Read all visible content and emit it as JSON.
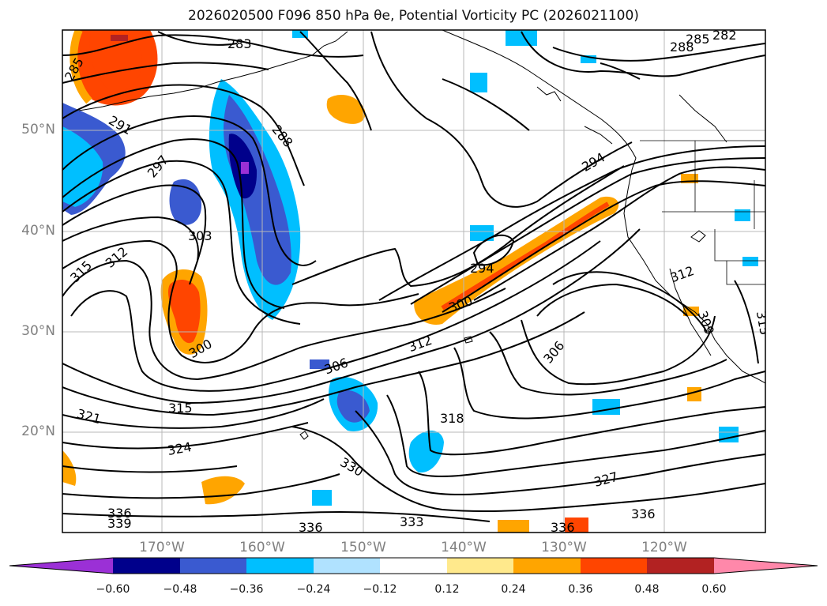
{
  "title": "2026020500 F096 850 hPa θe, Potential Vorticity PC (2026021100)",
  "lat_labels": [
    "50°N",
    "40°N",
    "30°N",
    "20°N"
  ],
  "lon_labels": [
    "170°W",
    "160°W",
    "150°W",
    "140°W",
    "130°W",
    "120°W"
  ],
  "contour_labels": [
    "285",
    "283",
    "285",
    "282",
    "288",
    "291",
    "288",
    "297",
    "294",
    "303",
    "315",
    "312",
    "294",
    "300",
    "312",
    "300",
    "306",
    "306",
    "312",
    "309",
    "315",
    "321",
    "315",
    "318",
    "324",
    "330",
    "327",
    "336",
    "339",
    "336",
    "333",
    "336",
    "336"
  ],
  "colorbar": {
    "colors": [
      "#9b30d6",
      "#00008b",
      "#3a5ad0",
      "#00bfff",
      "#b0e2ff",
      "#ffffff",
      "#ffe98c",
      "#ffa500",
      "#ff4500",
      "#b22222",
      "#ff88aa"
    ],
    "tick_labels": [
      "−0.60",
      "−0.48",
      "−0.36",
      "−0.24",
      "−0.12",
      "0.12",
      "0.24",
      "0.36",
      "0.48",
      "0.60"
    ]
  }
}
